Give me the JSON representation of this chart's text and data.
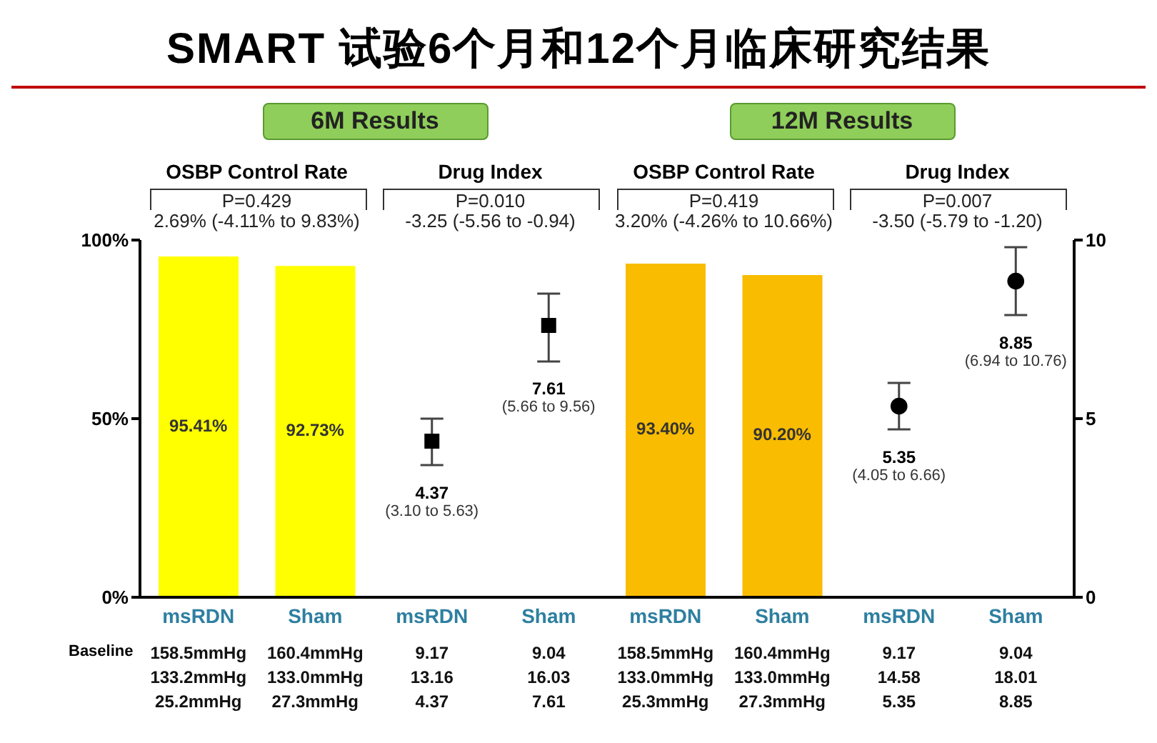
{
  "chart_data": {
    "type": "bar",
    "title": "SMART 试验6个月和12个月临床研究结果",
    "categories": [
      "msRDN",
      "Sham",
      "msRDN",
      "Sham",
      "msRDN",
      "Sham",
      "msRDN",
      "Sham"
    ],
    "series": [
      {
        "values": [
          95.41,
          92.73,
          null,
          null,
          93.4,
          90.2,
          null,
          null
        ],
        "colors": [
          "#ffff00",
          "#ffff00",
          null,
          null,
          "#f9bc00",
          "#f9bc00",
          null,
          null
        ],
        "value_labels": [
          "95.41%",
          "92.73%",
          null,
          null,
          "93.40%",
          "90.20%",
          null,
          null
        ]
      },
      {
        "type": "scatter",
        "axis": "y2",
        "marker": "square",
        "color": "#000000",
        "values": [
          null,
          null,
          4.37,
          7.61,
          null,
          null,
          null,
          null
        ],
        "errors": [
          null,
          null,
          [
            3.7,
            5.0
          ],
          [
            6.6,
            8.5
          ],
          null,
          null,
          null,
          null
        ],
        "value_labels": [
          null,
          null,
          "4.37",
          "7.61",
          null,
          null,
          null,
          null
        ]
      },
      {
        "type": "scatter",
        "axis": "y2",
        "marker": "circle",
        "color": "#000000",
        "values": [
          null,
          null,
          null,
          null,
          null,
          null,
          5.35,
          8.85
        ],
        "errors": [
          null,
          null,
          null,
          null,
          null,
          null,
          [
            4.7,
            6.0
          ],
          [
            7.9,
            9.8
          ]
        ],
        "value_labels": [
          null,
          null,
          null,
          null,
          null,
          null,
          "5.35",
          "8.85"
        ]
      }
    ],
    "ylim": [
      0,
      100
    ],
    "yticks": [
      {
        "value": 0,
        "label": "0%"
      },
      {
        "value": 50,
        "label": "50%"
      },
      {
        "value": 100,
        "label": "100%"
      }
    ],
    "y2lim": [
      0,
      10
    ],
    "y2ticks": [
      0,
      5,
      10
    ],
    "annotations": [
      "6M Results",
      "12M Results",
      "OSBP Control Rate",
      "P=0.429",
      "2.69% (-4.11% to 9.83%)",
      "Drug Index",
      "P=0.010",
      "-3.25 (-5.56 to -0.94)",
      "OSBP Control Rate",
      "P=0.419",
      "3.20% (-4.26% to 10.66%)",
      "Drug Index",
      "P=0.007",
      "-3.50 (-5.79 to -1.20)",
      "Baseline",
      "158.5mmHg",
      "160.4mmHg",
      "9.17",
      "9.04",
      "158.5mmHg",
      "160.4mmHg",
      "9.17",
      "9.04",
      "133.2mmHg",
      "133.0mmHg",
      "13.16",
      "16.03",
      "133.0mmHg",
      "133.0mmHg",
      "14.58",
      "18.01",
      "25.2mmHg",
      "27.3mmHg",
      "4.37",
      "7.61",
      "25.3mmHg",
      "27.3mmHg",
      "5.35",
      "8.85",
      "(3.10 to 5.63)",
      "(5.66 to 9.56)",
      "(4.05 to 6.66)",
      "(6.94 to 10.76)"
    ]
  }
}
